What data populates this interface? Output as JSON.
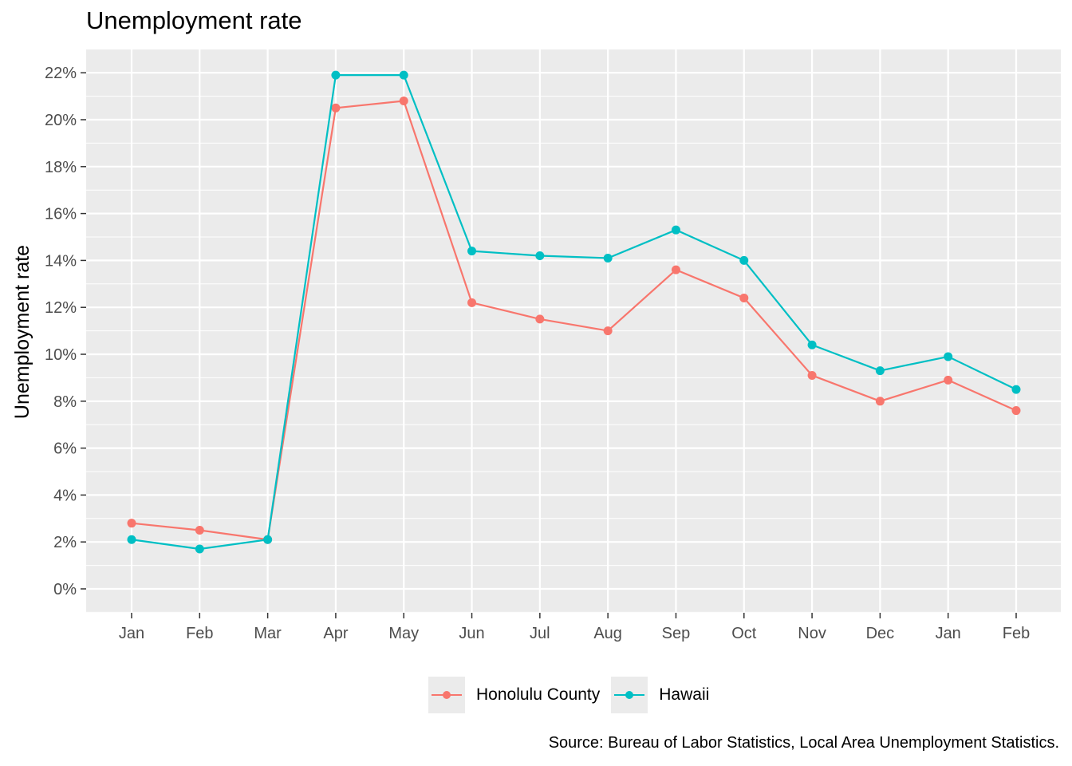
{
  "chart_data": {
    "type": "line",
    "title": "Unemployment rate",
    "xlabel": "",
    "ylabel": "Unemployment rate",
    "categories": [
      "Jan",
      "Feb",
      "Mar",
      "Apr",
      "May",
      "Jun",
      "Jul",
      "Aug",
      "Sep",
      "Oct",
      "Nov",
      "Dec",
      "Jan",
      "Feb"
    ],
    "ylim": [
      0,
      22
    ],
    "yticks": [
      "0%",
      "2%",
      "4%",
      "6%",
      "8%",
      "10%",
      "12%",
      "14%",
      "16%",
      "18%",
      "20%",
      "22%"
    ],
    "series": [
      {
        "name": "Honolulu County",
        "color": "#F8766D",
        "values": [
          2.8,
          2.5,
          2.1,
          20.5,
          20.8,
          12.2,
          11.5,
          11.0,
          13.6,
          12.4,
          9.1,
          8.0,
          8.9,
          7.6
        ]
      },
      {
        "name": "Hawaii",
        "color": "#00BFC4",
        "values": [
          2.1,
          1.7,
          2.1,
          21.9,
          21.9,
          14.4,
          14.2,
          14.1,
          15.3,
          14.0,
          10.4,
          9.3,
          9.9,
          8.5
        ]
      }
    ],
    "grid": true,
    "legend_position": "bottom",
    "panel_background": "#EBEBEB",
    "caption": "Source: Bureau of Labor Statistics, Local Area Unemployment Statistics."
  }
}
